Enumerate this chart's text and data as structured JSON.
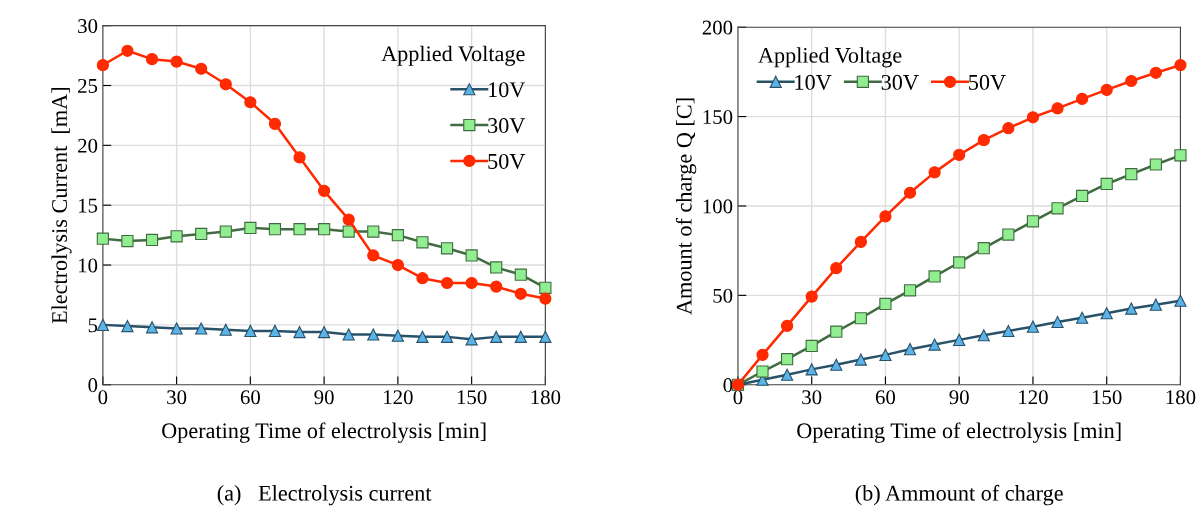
{
  "chart_data": [
    {
      "type": "line",
      "xlabel": "Operating Time of electrolysis [min]",
      "ylabel": "Electrolysis Current  [mA]",
      "legend_title": "Applied Voltage",
      "legend": "top right",
      "grid": true,
      "line_style": "solid",
      "x": [
        0,
        10,
        20,
        30,
        40,
        50,
        60,
        70,
        80,
        90,
        100,
        110,
        120,
        130,
        140,
        150,
        160,
        170,
        180
      ],
      "xlim": [
        0,
        180
      ],
      "xticks": [
        0,
        30,
        60,
        90,
        120,
        150,
        180
      ],
      "ylim": [
        0,
        30
      ],
      "yticks": [
        0,
        5,
        10,
        15,
        20,
        25,
        30
      ],
      "series": [
        {
          "name": "10V",
          "color": "#5bb4e8",
          "marker": "triangle",
          "values": [
            5.0,
            4.9,
            4.8,
            4.7,
            4.7,
            4.6,
            4.5,
            4.5,
            4.4,
            4.4,
            4.2,
            4.2,
            4.1,
            4.0,
            4.0,
            3.8,
            4.0,
            4.0,
            4.0
          ]
        },
        {
          "name": "30V",
          "color": "#90ee90",
          "marker": "square",
          "values": [
            12.2,
            12.0,
            12.1,
            12.4,
            12.6,
            12.8,
            13.1,
            13.0,
            13.0,
            13.0,
            12.8,
            12.8,
            12.5,
            11.9,
            11.4,
            10.8,
            9.8,
            9.2,
            8.1
          ]
        },
        {
          "name": "50V",
          "color": "#ff2a00",
          "marker": "circle",
          "values": [
            26.7,
            27.9,
            27.2,
            27.0,
            26.4,
            25.1,
            23.6,
            21.8,
            19.0,
            16.2,
            13.8,
            10.8,
            10.0,
            8.9,
            8.5,
            8.5,
            8.2,
            7.6,
            7.2
          ]
        }
      ],
      "annotations": [
        "(a)   Electrolysis current"
      ]
    },
    {
      "type": "line",
      "xlabel": "Operating Time of electrolysis [min]",
      "ylabel": "Amount of charge Q [C]",
      "legend_title": "Applied Voltage",
      "legend": "top left",
      "grid": true,
      "line_style": "solid",
      "x": [
        0,
        10,
        20,
        30,
        40,
        50,
        60,
        70,
        80,
        90,
        100,
        110,
        120,
        130,
        140,
        150,
        160,
        170,
        180
      ],
      "xlim": [
        0,
        180
      ],
      "xticks": [
        0,
        30,
        60,
        90,
        120,
        150,
        180
      ],
      "ylim": [
        0,
        200
      ],
      "yticks": [
        0,
        50,
        100,
        150,
        200
      ],
      "series": [
        {
          "name": "10V",
          "color": "#5bb4e8",
          "marker": "triangle",
          "values": [
            0,
            2.8,
            5.6,
            8.6,
            11.2,
            14.1,
            16.7,
            19.9,
            22.5,
            25.1,
            27.7,
            30.1,
            32.5,
            35.1,
            37.5,
            40.0,
            42.6,
            44.8,
            47.0
          ]
        },
        {
          "name": "30V",
          "color": "#90ee90",
          "marker": "square",
          "values": [
            0,
            7.4,
            14.3,
            21.7,
            29.7,
            37.2,
            45.2,
            52.8,
            60.6,
            68.4,
            76.4,
            84.0,
            91.4,
            98.7,
            105.6,
            112.3,
            117.8,
            123.2,
            128.3
          ]
        },
        {
          "name": "50V",
          "color": "#ff2a00",
          "marker": "circle",
          "values": [
            0,
            16.7,
            32.9,
            49.3,
            65.2,
            79.9,
            94.2,
            107.4,
            118.8,
            128.6,
            136.8,
            143.5,
            149.6,
            154.6,
            159.9,
            164.9,
            169.9,
            174.5,
            178.8
          ]
        }
      ],
      "annotations": [
        "(b) Ammount of charge"
      ]
    }
  ]
}
